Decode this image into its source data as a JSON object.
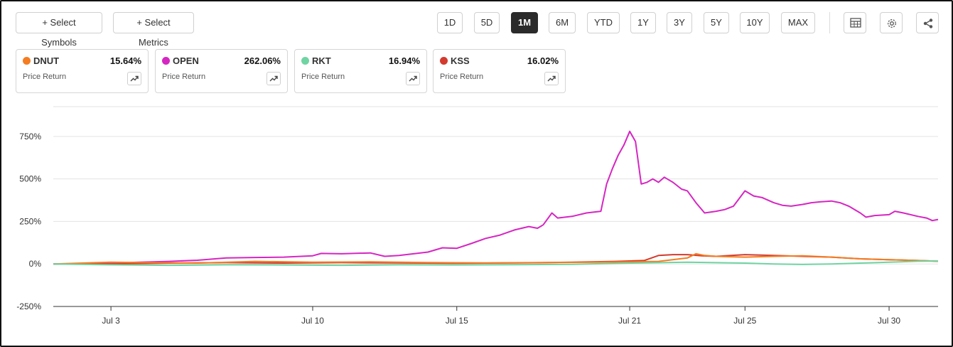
{
  "toolbar": {
    "select_symbols": "+ Select Symbols",
    "select_metrics": "+ Select Metrics",
    "ranges": [
      "1D",
      "5D",
      "1M",
      "6M",
      "YTD",
      "1Y",
      "3Y",
      "5Y",
      "10Y",
      "MAX"
    ],
    "active_range": "1M",
    "icons": [
      "table-icon",
      "gear-icon",
      "share-icon"
    ]
  },
  "cards": [
    {
      "symbol": "DNUT",
      "return": "15.64%",
      "metric": "Price Return",
      "color": "#f57c20"
    },
    {
      "symbol": "OPEN",
      "return": "262.06%",
      "metric": "Price Return",
      "color": "#d626c2"
    },
    {
      "symbol": "RKT",
      "return": "16.94%",
      "metric": "Price Return",
      "color": "#6fd4a2"
    },
    {
      "symbol": "KSS",
      "return": "16.02%",
      "metric": "Price Return",
      "color": "#d23b2e"
    }
  ],
  "chart_data": {
    "type": "line",
    "title": "",
    "xlabel": "",
    "ylabel": "",
    "y_ticks": [
      "750%",
      "500%",
      "250%",
      "0%",
      "-250%"
    ],
    "y_tick_values": [
      750,
      500,
      250,
      0,
      -250
    ],
    "x_ticks": [
      "Jul 3",
      "Jul 10",
      "Jul 15",
      "Jul 21",
      "Jul 25",
      "Jul 30"
    ],
    "ylim": [
      -250,
      925
    ],
    "x_range_days": [
      1,
      31.7
    ],
    "x_tick_days": [
      3,
      10,
      15,
      21,
      25,
      30
    ],
    "grid": true,
    "series": [
      {
        "name": "OPEN",
        "color": "#d626c2",
        "points": [
          [
            1,
            0
          ],
          [
            2,
            2
          ],
          [
            3,
            5
          ],
          [
            4,
            10
          ],
          [
            5,
            15
          ],
          [
            6,
            22
          ],
          [
            7,
            35
          ],
          [
            8,
            38
          ],
          [
            9,
            40
          ],
          [
            10,
            48
          ],
          [
            10.3,
            62
          ],
          [
            11,
            60
          ],
          [
            12,
            65
          ],
          [
            12.5,
            45
          ],
          [
            13,
            50
          ],
          [
            14,
            70
          ],
          [
            14.5,
            95
          ],
          [
            15,
            92
          ],
          [
            15.5,
            120
          ],
          [
            16,
            150
          ],
          [
            16.5,
            170
          ],
          [
            17,
            200
          ],
          [
            17.5,
            220
          ],
          [
            17.8,
            210
          ],
          [
            18,
            230
          ],
          [
            18.3,
            300
          ],
          [
            18.5,
            270
          ],
          [
            19,
            280
          ],
          [
            19.5,
            300
          ],
          [
            20,
            310
          ],
          [
            20.2,
            470
          ],
          [
            20.4,
            560
          ],
          [
            20.6,
            640
          ],
          [
            20.8,
            700
          ],
          [
            21,
            780
          ],
          [
            21.2,
            720
          ],
          [
            21.4,
            470
          ],
          [
            21.6,
            480
          ],
          [
            21.8,
            500
          ],
          [
            22,
            480
          ],
          [
            22.2,
            510
          ],
          [
            22.5,
            480
          ],
          [
            22.8,
            440
          ],
          [
            23,
            430
          ],
          [
            23.3,
            360
          ],
          [
            23.6,
            300
          ],
          [
            24,
            310
          ],
          [
            24.3,
            320
          ],
          [
            24.6,
            340
          ],
          [
            25,
            430
          ],
          [
            25.3,
            400
          ],
          [
            25.6,
            390
          ],
          [
            26,
            360
          ],
          [
            26.3,
            345
          ],
          [
            26.6,
            340
          ],
          [
            27,
            350
          ],
          [
            27.3,
            360
          ],
          [
            27.6,
            365
          ],
          [
            28,
            370
          ],
          [
            28.3,
            360
          ],
          [
            28.6,
            340
          ],
          [
            29,
            300
          ],
          [
            29.2,
            275
          ],
          [
            29.5,
            285
          ],
          [
            30,
            290
          ],
          [
            30.2,
            310
          ],
          [
            30.5,
            300
          ],
          [
            31,
            280
          ],
          [
            31.3,
            270
          ],
          [
            31.5,
            255
          ],
          [
            31.7,
            262
          ]
        ]
      },
      {
        "name": "KSS",
        "color": "#d23b2e",
        "points": [
          [
            1,
            0
          ],
          [
            3,
            0
          ],
          [
            5,
            5
          ],
          [
            7,
            8
          ],
          [
            9,
            5
          ],
          [
            11,
            8
          ],
          [
            13,
            6
          ],
          [
            15,
            4
          ],
          [
            17,
            6
          ],
          [
            19,
            10
          ],
          [
            20.5,
            15
          ],
          [
            21.5,
            20
          ],
          [
            22,
            50
          ],
          [
            22.5,
            55
          ],
          [
            23,
            55
          ],
          [
            23.5,
            48
          ],
          [
            24,
            45
          ],
          [
            25,
            55
          ],
          [
            26,
            50
          ],
          [
            27,
            45
          ],
          [
            28,
            40
          ],
          [
            29,
            30
          ],
          [
            30,
            25
          ],
          [
            31,
            20
          ],
          [
            31.7,
            16
          ]
        ]
      },
      {
        "name": "DNUT",
        "color": "#f57c20",
        "points": [
          [
            1,
            0
          ],
          [
            2,
            5
          ],
          [
            3,
            10
          ],
          [
            4,
            8
          ],
          [
            6,
            5
          ],
          [
            8,
            15
          ],
          [
            10,
            10
          ],
          [
            12,
            12
          ],
          [
            14,
            8
          ],
          [
            16,
            6
          ],
          [
            18,
            8
          ],
          [
            20,
            10
          ],
          [
            21,
            12
          ],
          [
            22,
            15
          ],
          [
            23,
            35
          ],
          [
            23.3,
            60
          ],
          [
            23.6,
            50
          ],
          [
            24,
            45
          ],
          [
            25,
            40
          ],
          [
            26,
            45
          ],
          [
            27,
            48
          ],
          [
            28,
            40
          ],
          [
            29,
            30
          ],
          [
            30,
            25
          ],
          [
            31,
            20
          ],
          [
            31.7,
            16
          ]
        ]
      },
      {
        "name": "RKT",
        "color": "#6fd4a2",
        "points": [
          [
            1,
            0
          ],
          [
            3,
            -5
          ],
          [
            5,
            -8
          ],
          [
            7,
            -5
          ],
          [
            9,
            -6
          ],
          [
            11,
            -8
          ],
          [
            13,
            -5
          ],
          [
            15,
            -6
          ],
          [
            17,
            -4
          ],
          [
            19,
            -2
          ],
          [
            21,
            5
          ],
          [
            23,
            10
          ],
          [
            25,
            5
          ],
          [
            26,
            0
          ],
          [
            27,
            -3
          ],
          [
            28,
            0
          ],
          [
            29,
            5
          ],
          [
            30,
            10
          ],
          [
            31,
            16
          ],
          [
            31.7,
            17
          ]
        ]
      }
    ]
  }
}
